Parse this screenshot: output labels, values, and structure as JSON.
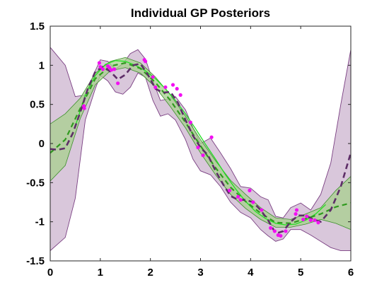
{
  "chart_data": {
    "type": "line",
    "title": "Individual GP Posteriors",
    "xlabel": "",
    "ylabel": "",
    "xlim": [
      0,
      6
    ],
    "ylim": [
      -1.5,
      1.5
    ],
    "xticks": [
      "0",
      "1",
      "2",
      "3",
      "4",
      "5",
      "6"
    ],
    "yticks": [
      "1.5",
      "1",
      "0.5",
      "0",
      "-0.5",
      "-1",
      "-1.5"
    ],
    "grid": false,
    "legend": "none",
    "colors": {
      "wide_band_fill": "#d9c7db",
      "wide_band_edge": "#7a3f82",
      "wide_mean": "#5e2e68",
      "narrow_band_fill": "#a7d08e",
      "narrow_band_edge": "#3d8f2c",
      "narrow_mean": "#2f9a1e",
      "true_function": "#22e022",
      "observations": "#f20ff2"
    },
    "series": [
      {
        "kind": "band",
        "x": [
          0.0,
          0.3,
          0.5,
          0.7,
          0.9,
          1.0,
          1.15,
          1.3,
          1.45,
          1.6,
          1.75,
          1.9,
          2.05,
          2.2,
          2.35,
          2.5,
          2.7,
          2.85,
          3.0,
          3.2,
          3.4,
          3.6,
          3.8,
          4.0,
          4.2,
          4.35,
          4.5,
          4.65,
          4.8,
          5.0,
          5.2,
          5.4,
          5.6,
          5.8,
          6.0
        ],
        "upper": [
          1.23,
          1.0,
          0.6,
          0.62,
          0.93,
          1.07,
          1.05,
          0.95,
          1.02,
          1.15,
          1.2,
          1.08,
          0.8,
          0.55,
          0.57,
          0.6,
          0.43,
          0.2,
          0.0,
          0.07,
          -0.12,
          -0.32,
          -0.55,
          -0.57,
          -0.68,
          -0.72,
          -0.93,
          -0.95,
          -0.82,
          -0.76,
          -0.85,
          -0.65,
          -0.25,
          0.5,
          1.2
        ],
        "lower": [
          -1.37,
          -1.2,
          -0.7,
          0.3,
          0.7,
          0.87,
          0.8,
          0.66,
          0.63,
          0.72,
          0.9,
          0.85,
          0.55,
          0.35,
          0.38,
          0.3,
          0.05,
          -0.2,
          -0.35,
          -0.4,
          -0.55,
          -0.75,
          -0.88,
          -0.95,
          -1.1,
          -1.18,
          -1.25,
          -1.22,
          -1.1,
          -1.1,
          -1.17,
          -1.25,
          -1.33,
          -1.37,
          -1.37
        ]
      },
      {
        "kind": "line",
        "x": [
          0.0,
          0.15,
          0.3,
          0.45,
          0.6,
          0.75,
          0.9,
          1.05,
          1.2,
          1.35,
          1.5,
          1.65,
          1.8,
          1.95,
          2.1,
          2.25,
          2.4,
          2.55,
          2.7,
          2.85,
          3.0,
          3.15,
          3.3,
          3.45,
          3.6,
          3.75,
          3.9,
          4.05,
          4.2,
          4.35,
          4.5,
          4.65,
          4.8,
          4.95,
          5.1,
          5.25,
          5.4,
          5.6,
          5.8,
          6.0
        ],
        "y": [
          -0.07,
          -0.08,
          -0.06,
          0.13,
          0.4,
          0.7,
          0.92,
          0.98,
          0.92,
          0.82,
          0.88,
          1.0,
          1.02,
          0.88,
          0.7,
          0.65,
          0.66,
          0.52,
          0.3,
          0.1,
          -0.05,
          -0.15,
          -0.35,
          -0.52,
          -0.67,
          -0.72,
          -0.72,
          -0.75,
          -0.85,
          -0.98,
          -1.15,
          -1.12,
          -1.0,
          -0.92,
          -0.92,
          -0.97,
          -1.0,
          -0.85,
          -0.55,
          -0.12
        ]
      },
      {
        "kind": "band",
        "x": [
          0.0,
          0.3,
          0.6,
          0.9,
          1.2,
          1.5,
          1.8,
          2.1,
          2.4,
          2.7,
          3.0,
          3.3,
          3.6,
          3.9,
          4.2,
          4.5,
          4.8,
          5.1,
          5.4,
          5.7,
          6.0
        ],
        "upper": [
          0.25,
          0.38,
          0.58,
          0.9,
          1.05,
          1.1,
          1.03,
          0.85,
          0.62,
          0.35,
          0.05,
          -0.22,
          -0.47,
          -0.65,
          -0.82,
          -0.95,
          -0.97,
          -0.9,
          -0.82,
          -0.6,
          -0.42
        ],
        "lower": [
          -0.48,
          -0.28,
          0.32,
          0.75,
          0.93,
          0.97,
          0.9,
          0.72,
          0.47,
          0.2,
          -0.12,
          -0.4,
          -0.65,
          -0.83,
          -0.97,
          -1.07,
          -1.07,
          -1.03,
          -0.97,
          -1.02,
          -1.1
        ]
      },
      {
        "kind": "line",
        "x": [
          0.0,
          0.3,
          0.6,
          0.9,
          1.2,
          1.5,
          1.8,
          2.1,
          2.4,
          2.7,
          3.0,
          3.3,
          3.6,
          3.9,
          4.2,
          4.5,
          4.8,
          5.1,
          5.4,
          5.7,
          6.0
        ],
        "y": [
          -0.12,
          0.05,
          0.45,
          0.83,
          0.99,
          1.03,
          0.96,
          0.78,
          0.55,
          0.27,
          -0.03,
          -0.31,
          -0.56,
          -0.74,
          -0.89,
          -1.01,
          -1.02,
          -0.96,
          -0.9,
          -0.81,
          -0.76
        ]
      },
      {
        "kind": "line",
        "x": [
          0.5,
          0.7,
          0.9,
          1.1,
          1.3,
          1.5,
          1.7,
          1.9,
          2.1,
          2.3,
          2.5,
          2.7,
          2.9,
          3.1,
          3.3,
          3.5,
          3.7,
          3.9,
          4.1,
          4.3,
          4.5,
          4.7,
          4.9,
          5.1,
          5.3,
          5.5
        ],
        "y": [
          0.22,
          0.62,
          0.87,
          1.01,
          1.06,
          1.05,
          1.0,
          0.93,
          0.83,
          0.7,
          0.55,
          0.38,
          0.19,
          -0.01,
          -0.2,
          -0.4,
          -0.58,
          -0.74,
          -0.87,
          -0.96,
          -1.02,
          -1.04,
          -1.03,
          -0.98,
          -0.9,
          -0.78
        ]
      },
      {
        "kind": "scatter",
        "x": [
          0.67,
          0.68,
          0.98,
          1.0,
          1.05,
          1.15,
          1.18,
          1.22,
          1.28,
          1.35,
          1.88,
          1.9,
          2.05,
          2.1,
          2.3,
          2.45,
          2.53,
          2.6,
          2.8,
          2.95,
          3.05,
          3.22,
          3.58,
          3.75,
          3.8,
          3.98,
          4.05,
          4.22,
          4.4,
          4.48,
          4.55,
          4.6,
          4.7,
          4.9,
          4.92,
          5.05,
          5.12,
          5.2,
          5.28,
          5.35
        ],
        "y": [
          0.48,
          0.45,
          1.03,
          0.98,
          0.95,
          0.99,
          0.97,
          0.94,
          0.95,
          0.77,
          1.07,
          1.05,
          0.85,
          0.72,
          0.72,
          0.75,
          0.7,
          0.62,
          0.27,
          -0.05,
          -0.15,
          0.08,
          -0.6,
          -0.68,
          -0.72,
          -0.6,
          -0.75,
          -0.85,
          -1.08,
          -1.12,
          -1.17,
          -1.18,
          -1.12,
          -0.9,
          -0.85,
          -0.97,
          -0.93,
          -0.98,
          -0.98,
          -1.01
        ]
      }
    ]
  }
}
